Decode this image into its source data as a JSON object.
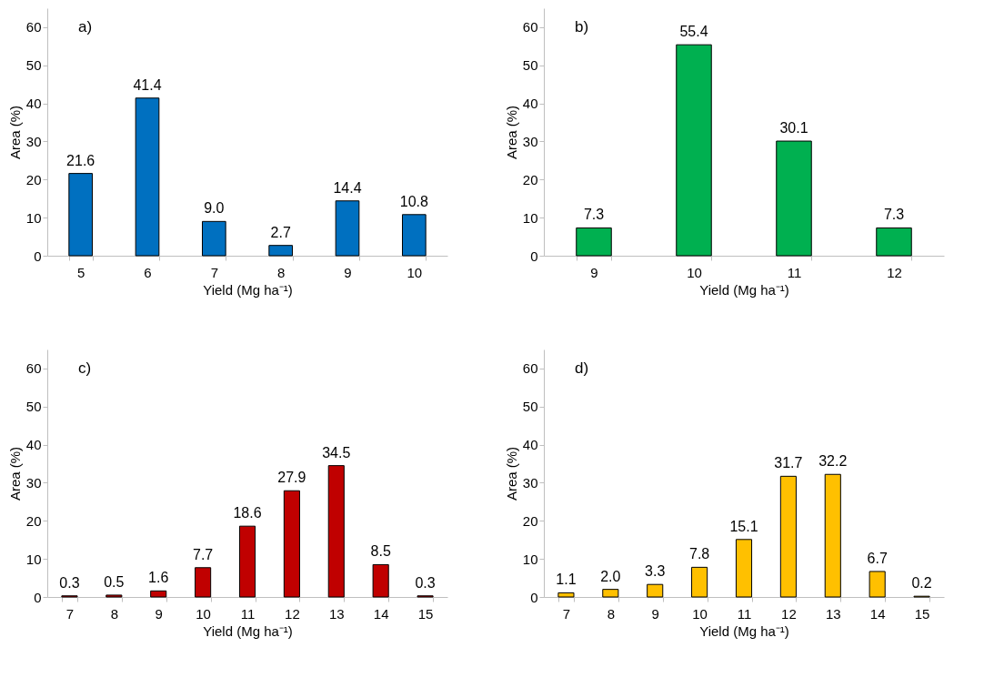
{
  "chart_data": [
    {
      "type": "bar",
      "title": "a)",
      "xlabel": "Yield (Mg ha⁻¹)",
      "ylabel": "Area (%)",
      "categories": [
        "5",
        "6",
        "7",
        "8",
        "9",
        "10"
      ],
      "values": [
        21.6,
        41.4,
        9.0,
        2.7,
        14.4,
        10.8
      ],
      "value_labels": [
        "21.6",
        "41.4",
        "9.0",
        "2.7",
        "14.4",
        "10.8"
      ],
      "color": "#0070c0",
      "ylim": [
        0,
        65
      ],
      "yticks": [
        0,
        10,
        20,
        30,
        40,
        50,
        60
      ],
      "grid": false
    },
    {
      "type": "bar",
      "title": "b)",
      "xlabel": "Yield (Mg ha⁻¹)",
      "ylabel": "Area (%)",
      "categories": [
        "9",
        "10",
        "11",
        "12"
      ],
      "values": [
        7.3,
        55.4,
        30.1,
        7.3
      ],
      "value_labels": [
        "7.3",
        "55.4",
        "30.1",
        "7.3"
      ],
      "color": "#00b050",
      "ylim": [
        0,
        65
      ],
      "yticks": [
        0,
        10,
        20,
        30,
        40,
        50,
        60
      ],
      "grid": false
    },
    {
      "type": "bar",
      "title": "c)",
      "xlabel": "Yield (Mg ha⁻¹)",
      "ylabel": "Area (%)",
      "categories": [
        "7",
        "8",
        "9",
        "10",
        "11",
        "12",
        "13",
        "14",
        "15"
      ],
      "values": [
        0.3,
        0.5,
        1.6,
        7.7,
        18.6,
        27.9,
        34.5,
        8.5,
        0.3
      ],
      "value_labels": [
        "0.3",
        "0.5",
        "1.6",
        "7.7",
        "18.6",
        "27.9",
        "34.5",
        "8.5",
        "0.3"
      ],
      "color": "#c00000",
      "ylim": [
        0,
        65
      ],
      "yticks": [
        0,
        10,
        20,
        30,
        40,
        50,
        60
      ],
      "grid": false
    },
    {
      "type": "bar",
      "title": "d)",
      "xlabel": "Yield (Mg ha⁻¹)",
      "ylabel": "Area (%)",
      "categories": [
        "7",
        "8",
        "9",
        "10",
        "11",
        "12",
        "13",
        "14",
        "15"
      ],
      "values": [
        1.1,
        2.0,
        3.3,
        7.8,
        15.1,
        31.7,
        32.2,
        6.7,
        0.2
      ],
      "value_labels": [
        "1.1",
        "2.0",
        "3.3",
        "7.8",
        "15.1",
        "31.7",
        "32.2",
        "6.7",
        "0.2"
      ],
      "color": "#ffc000",
      "ylim": [
        0,
        65
      ],
      "yticks": [
        0,
        10,
        20,
        30,
        40,
        50,
        60
      ],
      "grid": false
    }
  ]
}
